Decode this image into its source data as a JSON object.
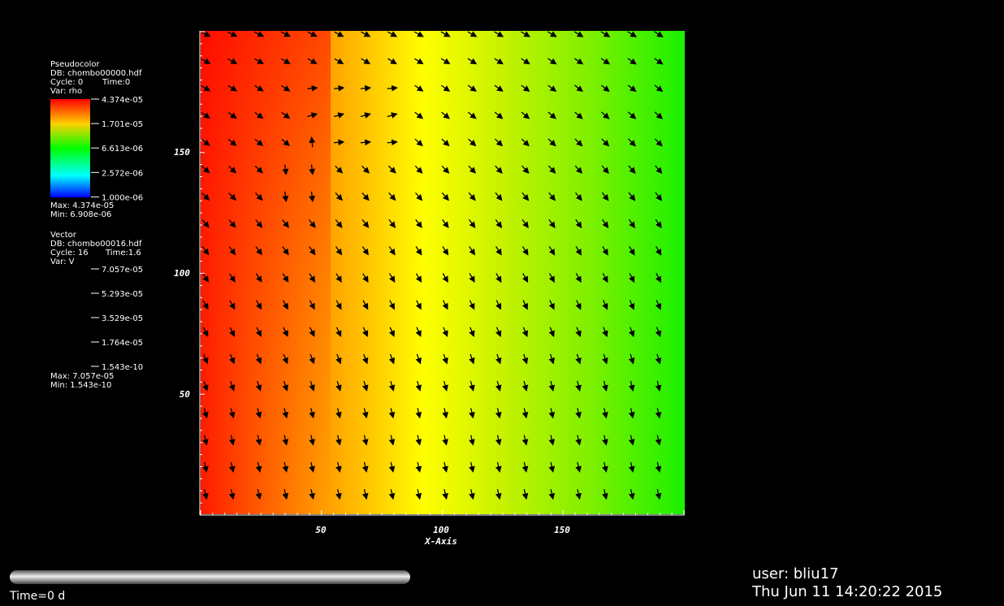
{
  "legend": {
    "pseudocolor": {
      "plot": "Pseudocolor",
      "db": "DB: chombo00000.hdf",
      "cycle": "Cycle: 0",
      "time": "Time:0",
      "var": "Var: rho",
      "ticks": [
        "4.374e-05",
        "1.701e-05",
        "6.613e-06",
        "2.572e-06",
        "1.000e-06"
      ],
      "max": "Max: 4.374e-05",
      "min": "Min: 6.908e-06"
    },
    "vector": {
      "plot": "Vector",
      "db": "DB: chombo00016.hdf",
      "cycle": "Cycle: 16",
      "time": "Time:1.6",
      "var": "Var: V",
      "ticks": [
        "7.057e-05",
        "5.293e-05",
        "3.529e-05",
        "1.764e-05",
        "1.543e-10"
      ],
      "max": "Max: 7.057e-05",
      "min": "Min: 1.543e-10"
    }
  },
  "axes": {
    "x_label": "X-Axis",
    "x_ticks": [
      "50",
      "100",
      "150"
    ],
    "y_ticks": [
      "150",
      "100",
      "50"
    ]
  },
  "time_slider": "Time=0 d",
  "user": "user: bliu17",
  "date": "Thu Jun 11 14:20:22 2015"
}
